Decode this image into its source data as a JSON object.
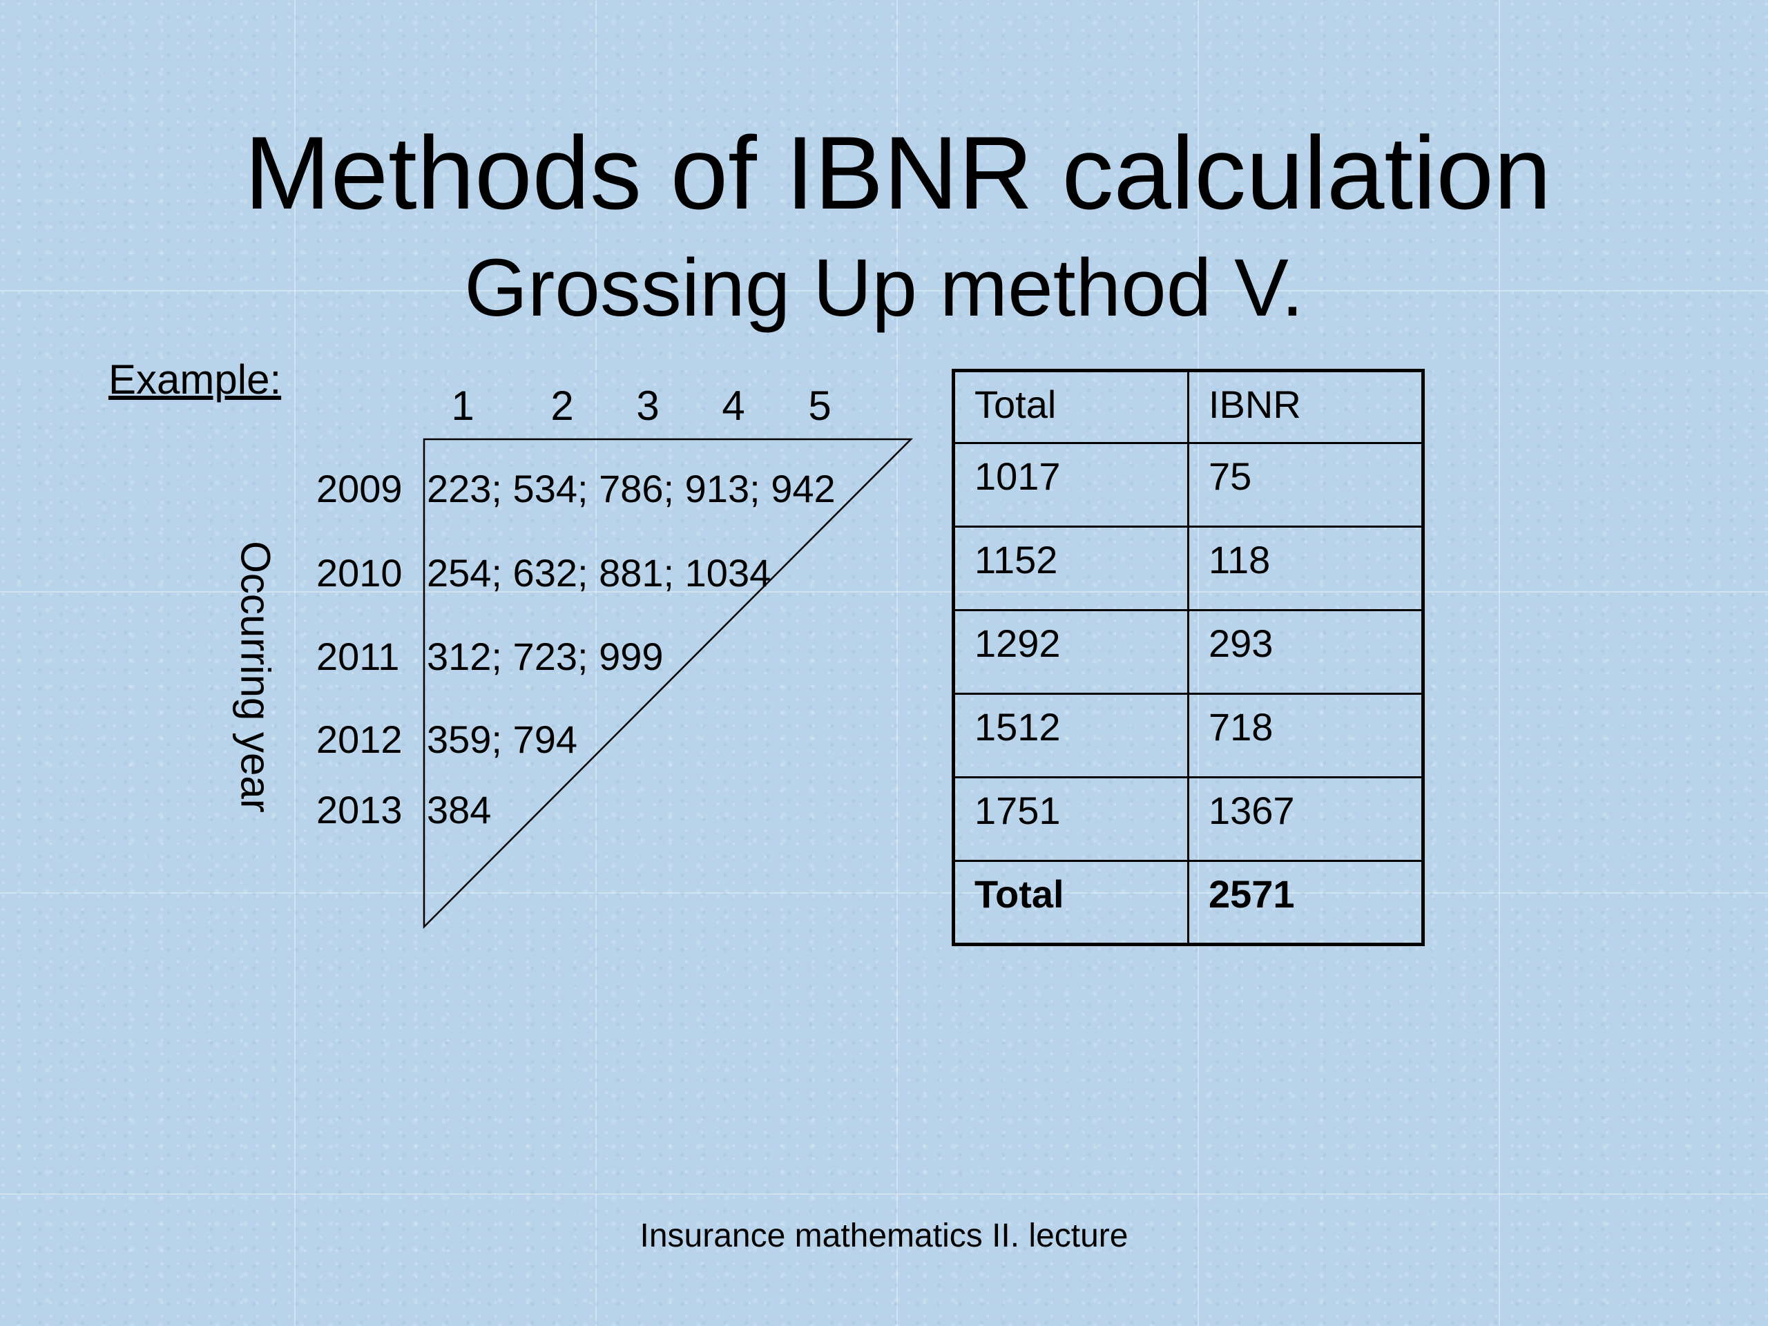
{
  "slide": {
    "title": "Methods of IBNR calculation",
    "subtitle": "Grossing Up method V.",
    "example_label": "Example:",
    "footer": "Insurance mathematics II. lecture"
  },
  "triangle": {
    "axis_label": "Occurring year",
    "dev_periods": [
      "1",
      "2",
      "3",
      "4",
      "5"
    ],
    "rows": [
      {
        "year": "2009",
        "values": "223; 534; 786; 913; 942"
      },
      {
        "year": "2010",
        "values": "254; 632; 881; 1034"
      },
      {
        "year": "2011",
        "values": "312; 723; 999"
      },
      {
        "year": "2012",
        "values": "359; 794"
      },
      {
        "year": "2013",
        "values": "384"
      }
    ]
  },
  "table": {
    "headers": [
      "Total",
      "IBNR"
    ],
    "rows": [
      [
        "1017",
        "75"
      ],
      [
        "1152",
        "118"
      ],
      [
        "1292",
        "293"
      ],
      [
        "1512",
        "718"
      ],
      [
        "1751",
        "1367"
      ]
    ],
    "total_row": [
      "Total",
      "2571"
    ]
  }
}
